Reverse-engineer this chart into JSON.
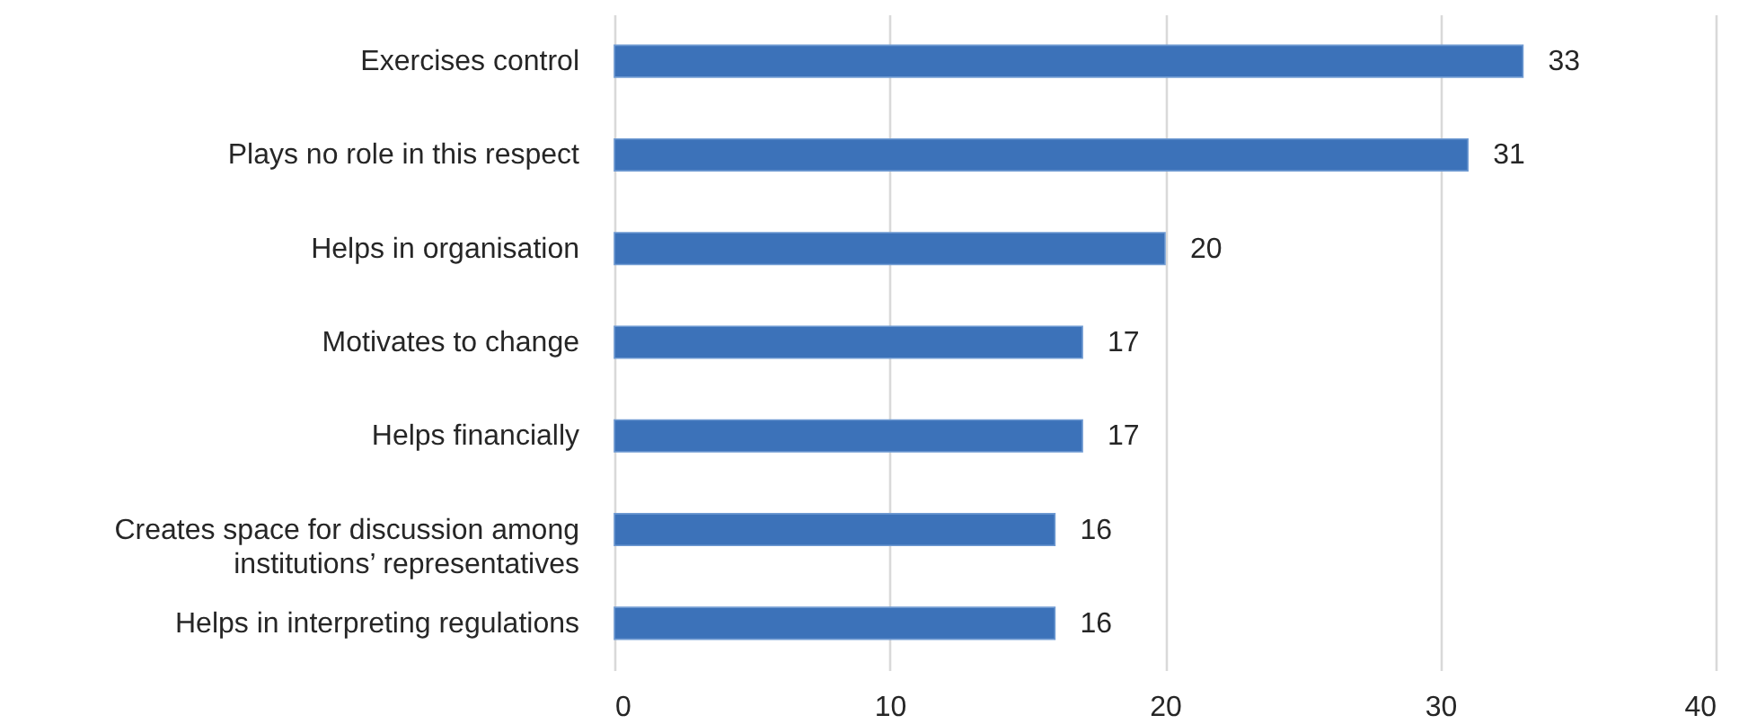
{
  "chart_data": {
    "type": "bar",
    "orientation": "horizontal",
    "categories": [
      "Exercises control",
      "Plays no role in this respect",
      "Helps in organisation",
      "Motivates to change",
      "Helps financially",
      "Creates space for discussion among\ninstitutions’ representatives",
      "Helps in interpreting regulations"
    ],
    "values": [
      33,
      31,
      20,
      17,
      17,
      16,
      16
    ],
    "color": "#3c72b9",
    "xlim": [
      0,
      40
    ],
    "xticks": [
      0,
      10,
      20,
      30,
      40
    ],
    "grid": "x",
    "data_labels": true
  }
}
